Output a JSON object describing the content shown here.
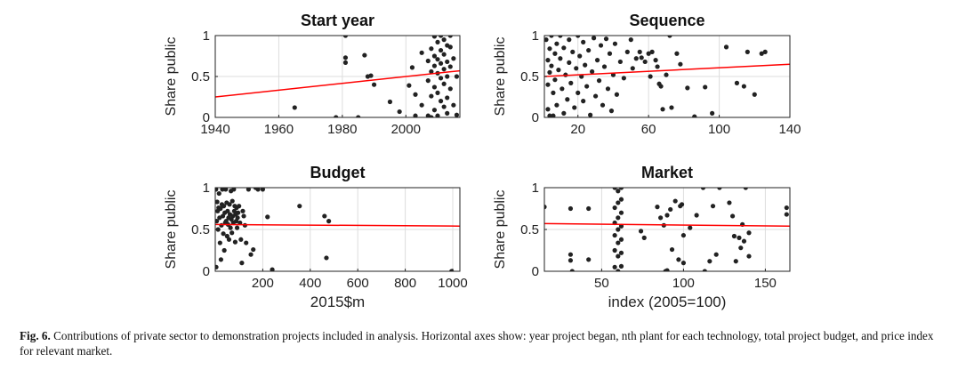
{
  "chart_data": [
    {
      "type": "scatter",
      "title": "Start year",
      "xlabel": "",
      "ylabel": "Share public",
      "xlim": [
        1940,
        2017
      ],
      "ylim": [
        0,
        1
      ],
      "xticks": [
        1940,
        1960,
        1980,
        2000
      ],
      "yticks": [
        "0",
        "0.5",
        "1"
      ],
      "grid": true,
      "points": [
        [
          1965,
          0.12
        ],
        [
          1978,
          0
        ],
        [
          1981,
          1
        ],
        [
          1981,
          0.73
        ],
        [
          1981,
          0.67
        ],
        [
          1987,
          0.76
        ],
        [
          1988,
          0.5
        ],
        [
          1989,
          0.51
        ],
        [
          1990,
          0.4
        ],
        [
          1985,
          0
        ],
        [
          1995,
          0.19
        ],
        [
          1998,
          0.07
        ],
        [
          2001,
          0.39
        ],
        [
          2002,
          0.61
        ],
        [
          2003,
          0.28
        ],
        [
          2003,
          0.02
        ],
        [
          2005,
          0.79
        ],
        [
          2005,
          0.15
        ],
        [
          2007,
          0.69
        ],
        [
          2007,
          0.45
        ],
        [
          2007,
          0.02
        ],
        [
          2008,
          0.84
        ],
        [
          2008,
          0.56
        ],
        [
          2008,
          0.26
        ],
        [
          2008,
          0
        ],
        [
          2009,
          0.99
        ],
        [
          2009,
          0.75
        ],
        [
          2009,
          0.63
        ],
        [
          2009,
          0.37
        ],
        [
          2009,
          0.09
        ],
        [
          2010,
          0.92
        ],
        [
          2010,
          0.71
        ],
        [
          2010,
          0.54
        ],
        [
          2010,
          0.3
        ],
        [
          2010,
          0.02
        ],
        [
          2011,
          1
        ],
        [
          2011,
          0.82
        ],
        [
          2011,
          0.66
        ],
        [
          2011,
          0.48
        ],
        [
          2011,
          0.2
        ],
        [
          2012,
          0.95
        ],
        [
          2012,
          0.77
        ],
        [
          2012,
          0.59
        ],
        [
          2012,
          0.41
        ],
        [
          2012,
          0.13
        ],
        [
          2013,
          0.88
        ],
        [
          2013,
          0.68
        ],
        [
          2013,
          0.5
        ],
        [
          2013,
          0.24
        ],
        [
          2013,
          0.05
        ],
        [
          2014,
          1
        ],
        [
          2014,
          0.86
        ],
        [
          2014,
          0.62
        ],
        [
          2014,
          0.35
        ],
        [
          2015,
          0.72
        ],
        [
          2015,
          0.15
        ],
        [
          2016,
          0.5
        ],
        [
          2016,
          0.03
        ]
      ],
      "trend": [
        [
          1940,
          0.25
        ],
        [
          2017,
          0.57
        ]
      ],
      "point_color": "#222222",
      "trend_color": "#ff0000"
    },
    {
      "type": "scatter",
      "title": "Sequence",
      "xlabel": "",
      "ylabel": "Share public",
      "xlim": [
        1,
        140
      ],
      "ylim": [
        0,
        1
      ],
      "xticks": [
        20,
        60,
        100,
        140
      ],
      "yticks": [
        "0",
        "0.5",
        "1"
      ],
      "grid": true,
      "points": [
        [
          2,
          0.95
        ],
        [
          3,
          0.7
        ],
        [
          3,
          0.4
        ],
        [
          3,
          0.1
        ],
        [
          4,
          0.84
        ],
        [
          4,
          0.55
        ],
        [
          4,
          0.02
        ],
        [
          5,
          1
        ],
        [
          5,
          0.63
        ],
        [
          6,
          0.3
        ],
        [
          6,
          0.02
        ],
        [
          7,
          0.78
        ],
        [
          7,
          0.46
        ],
        [
          8,
          0.9
        ],
        [
          8,
          0.15
        ],
        [
          9,
          0.58
        ],
        [
          10,
          1
        ],
        [
          10,
          0.72
        ],
        [
          11,
          0.35
        ],
        [
          12,
          0.85
        ],
        [
          12,
          0.05
        ],
        [
          13,
          0.52
        ],
        [
          14,
          0.22
        ],
        [
          15,
          0.95
        ],
        [
          15,
          0.67
        ],
        [
          16,
          0.42
        ],
        [
          17,
          0.8
        ],
        [
          18,
          0.12
        ],
        [
          19,
          0.6
        ],
        [
          20,
          1
        ],
        [
          20,
          0.3
        ],
        [
          21,
          0.75
        ],
        [
          22,
          0.5
        ],
        [
          23,
          0.92
        ],
        [
          23,
          0.2
        ],
        [
          24,
          0.64
        ],
        [
          25,
          0.38
        ],
        [
          26,
          0.82
        ],
        [
          27,
          0.03
        ],
        [
          28,
          0.56
        ],
        [
          29,
          0.97
        ],
        [
          30,
          0.26
        ],
        [
          31,
          0.7
        ],
        [
          32,
          0.45
        ],
        [
          33,
          0.88
        ],
        [
          34,
          0.15
        ],
        [
          35,
          0.62
        ],
        [
          36,
          0.96
        ],
        [
          37,
          0.35
        ],
        [
          38,
          0.78
        ],
        [
          39,
          0.08
        ],
        [
          40,
          0.52
        ],
        [
          41,
          0.9
        ],
        [
          42,
          0.28
        ],
        [
          44,
          0.68
        ],
        [
          46,
          0.48
        ],
        [
          48,
          0.8
        ],
        [
          50,
          0.95
        ],
        [
          51,
          0.6
        ],
        [
          53,
          0.72
        ],
        [
          55,
          0.8
        ],
        [
          56,
          0.73
        ],
        [
          58,
          0.68
        ],
        [
          60,
          0.78
        ],
        [
          61,
          0.5
        ],
        [
          62,
          0.8
        ],
        [
          64,
          0.7
        ],
        [
          65,
          0.62
        ],
        [
          66,
          0.41
        ],
        [
          67,
          0.38
        ],
        [
          68,
          0.1
        ],
        [
          70,
          0.52
        ],
        [
          72,
          1
        ],
        [
          73,
          0.12
        ],
        [
          76,
          0.78
        ],
        [
          78,
          0.65
        ],
        [
          82,
          0.36
        ],
        [
          86,
          0.01
        ],
        [
          92,
          0.37
        ],
        [
          96,
          0.05
        ],
        [
          104,
          0.86
        ],
        [
          110,
          0.42
        ],
        [
          114,
          0.38
        ],
        [
          116,
          0.8
        ],
        [
          120,
          0.28
        ],
        [
          124,
          0.78
        ],
        [
          126,
          0.8
        ]
      ],
      "trend": [
        [
          1,
          0.5
        ],
        [
          140,
          0.65
        ]
      ],
      "point_color": "#222222",
      "trend_color": "#ff0000"
    },
    {
      "type": "scatter",
      "title": "Budget",
      "xlabel": "2015$m",
      "ylabel": "Share public",
      "xlim": [
        0,
        1030
      ],
      "ylim": [
        0,
        1
      ],
      "xticks": [
        200,
        400,
        600,
        800,
        1000
      ],
      "yticks": [
        "0",
        "0.5",
        "1"
      ],
      "grid": true,
      "points": [
        [
          3,
          0.98
        ],
        [
          4,
          0.05
        ],
        [
          6,
          0.6
        ],
        [
          8,
          0.83
        ],
        [
          10,
          0.72
        ],
        [
          12,
          0.5
        ],
        [
          14,
          0.76
        ],
        [
          16,
          0.93
        ],
        [
          18,
          0.64
        ],
        [
          20,
          0.34
        ],
        [
          22,
          0.75
        ],
        [
          24,
          0.14
        ],
        [
          26,
          0.55
        ],
        [
          28,
          0.8
        ],
        [
          30,
          0.98
        ],
        [
          32,
          0.66
        ],
        [
          34,
          0.45
        ],
        [
          36,
          0.78
        ],
        [
          38,
          0.25
        ],
        [
          40,
          0.7
        ],
        [
          42,
          0.58
        ],
        [
          44,
          0.98
        ],
        [
          46,
          0.6
        ],
        [
          48,
          0.82
        ],
        [
          50,
          0.42
        ],
        [
          52,
          0.72
        ],
        [
          54,
          0.56
        ],
        [
          56,
          0.64
        ],
        [
          58,
          0.38
        ],
        [
          60,
          0.8
        ],
        [
          62,
          0.68
        ],
        [
          64,
          0.52
        ],
        [
          66,
          0.96
        ],
        [
          68,
          0.62
        ],
        [
          70,
          0.46
        ],
        [
          72,
          0.84
        ],
        [
          74,
          0.66
        ],
        [
          76,
          0.58
        ],
        [
          78,
          0.98
        ],
        [
          80,
          0.72
        ],
        [
          82,
          0.78
        ],
        [
          84,
          0.35
        ],
        [
          86,
          0.68
        ],
        [
          88,
          0.6
        ],
        [
          90,
          0.76
        ],
        [
          92,
          0.52
        ],
        [
          94,
          0.64
        ],
        [
          96,
          0.7
        ],
        [
          100,
          0.78
        ],
        [
          104,
          0.58
        ],
        [
          108,
          0.38
        ],
        [
          112,
          0.1
        ],
        [
          116,
          0.72
        ],
        [
          120,
          0.66
        ],
        [
          125,
          0.55
        ],
        [
          130,
          0.34
        ],
        [
          140,
          0.98
        ],
        [
          150,
          0.2
        ],
        [
          160,
          0.26
        ],
        [
          170,
          1
        ],
        [
          180,
          0.98
        ],
        [
          200,
          0.98
        ],
        [
          220,
          0.65
        ],
        [
          240,
          0.02
        ],
        [
          355,
          0.78
        ],
        [
          460,
          0.66
        ],
        [
          468,
          0.16
        ],
        [
          478,
          0.6
        ],
        [
          995,
          0
        ]
      ],
      "trend": [
        [
          0,
          0.56
        ],
        [
          1030,
          0.54
        ]
      ],
      "point_color": "#222222",
      "trend_color": "#ff0000"
    },
    {
      "type": "scatter",
      "title": "Market",
      "xlabel": "index (2005=100)",
      "ylabel": "Share public",
      "xlim": [
        15,
        165
      ],
      "ylim": [
        0,
        1
      ],
      "xticks": [
        50,
        100,
        150
      ],
      "yticks": [
        "0",
        "0.5",
        "1"
      ],
      "grid": true,
      "points": [
        [
          15,
          0.77
        ],
        [
          31,
          0.75
        ],
        [
          31,
          0.2
        ],
        [
          31,
          0.13
        ],
        [
          32,
          0
        ],
        [
          42,
          0.75
        ],
        [
          42,
          0.14
        ],
        [
          58,
          1
        ],
        [
          58,
          0.76
        ],
        [
          58,
          0.58
        ],
        [
          58,
          0.43
        ],
        [
          58,
          0.25
        ],
        [
          58,
          0.05
        ],
        [
          60,
          0.96
        ],
        [
          60,
          0.82
        ],
        [
          60,
          0.64
        ],
        [
          60,
          0.5
        ],
        [
          60,
          0.34
        ],
        [
          60,
          0.18
        ],
        [
          60,
          0
        ],
        [
          62,
          1
        ],
        [
          62,
          0.86
        ],
        [
          62,
          0.7
        ],
        [
          62,
          0.54
        ],
        [
          62,
          0.38
        ],
        [
          62,
          0.22
        ],
        [
          62,
          0.06
        ],
        [
          74,
          0.48
        ],
        [
          76,
          0.4
        ],
        [
          84,
          0.77
        ],
        [
          86,
          0.64
        ],
        [
          88,
          0.55
        ],
        [
          89,
          0
        ],
        [
          90,
          0.01
        ],
        [
          90,
          0.67
        ],
        [
          92,
          0.74
        ],
        [
          93,
          0.26
        ],
        [
          95,
          0.84
        ],
        [
          97,
          0.14
        ],
        [
          98,
          0.78
        ],
        [
          99,
          0.8
        ],
        [
          100,
          0.43
        ],
        [
          100,
          0.1
        ],
        [
          104,
          0.52
        ],
        [
          108,
          0.67
        ],
        [
          112,
          1
        ],
        [
          113,
          0
        ],
        [
          116,
          0.12
        ],
        [
          118,
          0.78
        ],
        [
          120,
          0.2
        ],
        [
          122,
          1
        ],
        [
          128,
          0.82
        ],
        [
          130,
          0.66
        ],
        [
          131,
          0.42
        ],
        [
          132,
          0.12
        ],
        [
          134,
          0.4
        ],
        [
          135,
          0.28
        ],
        [
          136,
          0.56
        ],
        [
          137,
          0.36
        ],
        [
          138,
          1
        ],
        [
          140,
          0.46
        ],
        [
          140,
          0.18
        ],
        [
          163,
          0.76
        ],
        [
          163,
          0.68
        ]
      ],
      "trend": [
        [
          15,
          0.57
        ],
        [
          165,
          0.54
        ]
      ],
      "point_color": "#222222",
      "trend_color": "#ff0000"
    }
  ],
  "caption": {
    "label": "Fig. 6.",
    "text": " Contributions of private sector to demonstration projects included in analysis. Horizontal axes show: year project began, nth plant for each technology, total project budget, and price index for relevant market."
  }
}
